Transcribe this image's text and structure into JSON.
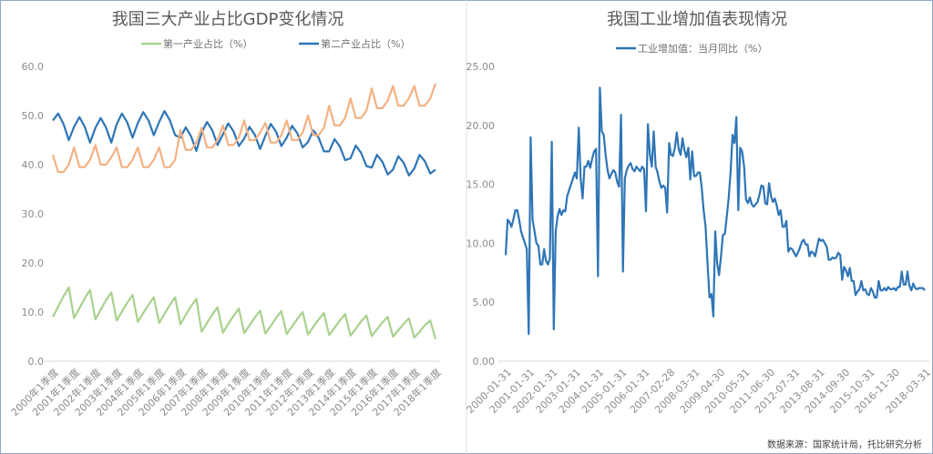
{
  "source_note": "数据来源：国家统计局，托比研究分析",
  "chart_data": [
    {
      "type": "line",
      "title": "我国三大产业占比GDP变化情况",
      "ylim": [
        0,
        60
      ],
      "yticks": [
        "0.0",
        "10.0",
        "20.0",
        "30.0",
        "40.0",
        "50.0",
        "60.0"
      ],
      "legend_position": "top",
      "grid": false,
      "x_tick_labels": [
        "2000年1季度",
        "2001年1季度",
        "2002年1季度",
        "2003年1季度",
        "2004年1季度",
        "2005年1季度",
        "2006年1季度",
        "2007年1季度",
        "2008年1季度",
        "2009年1季度",
        "2010年1季度",
        "2011年1季度",
        "2012年1季度",
        "2013年1季度",
        "2014年1季度",
        "2015年1季度",
        "2016年1季度",
        "2017年1季度",
        "2018年1季度"
      ],
      "x": "quarterly, 2000年1季度 to 2018年1季度",
      "series": [
        {
          "name": "第一产业占比（%）",
          "color": "#a9d18e",
          "values": [
            9,
            11.1,
            13.2,
            15,
            8.8,
            10.8,
            12.8,
            14.5,
            8.5,
            10.5,
            12.4,
            14,
            8.3,
            10.1,
            11.9,
            13.5,
            8,
            9.8,
            11.5,
            13,
            7.8,
            9.6,
            11.4,
            13,
            7.5,
            9.4,
            11.2,
            12.7,
            6,
            7.8,
            9.5,
            11,
            5.8,
            7.6,
            9.2,
            10.7,
            5.7,
            7.3,
            8.9,
            10.3,
            5.6,
            7.2,
            8.8,
            10.2,
            5.5,
            7.1,
            8.6,
            10,
            5.4,
            7,
            8.5,
            9.8,
            5.3,
            6.8,
            8.3,
            9.6,
            5.2,
            6.6,
            8.1,
            9.3,
            5.1,
            6.5,
            7.9,
            9,
            5,
            6.3,
            7.6,
            8.7,
            4.8,
            6,
            7.3,
            8.3,
            4.5
          ]
        },
        {
          "name": "第二产业占比（%）",
          "color": "#2e75b6",
          "values": [
            49,
            50.4,
            48.3,
            45,
            47.7,
            49.7,
            47.7,
            44.5,
            47.5,
            49.5,
            47.6,
            44.5,
            48.2,
            50.4,
            48.6,
            45.5,
            48.5,
            50.7,
            49,
            46,
            48.7,
            50.9,
            49.1,
            46,
            45.5,
            47.6,
            45.8,
            42.8,
            46.5,
            48.7,
            47,
            44,
            46.2,
            48.4,
            46.8,
            43.8,
            45.3,
            47.7,
            46.1,
            43.2,
            45.9,
            48.3,
            46.7,
            43.8,
            45.5,
            47.9,
            46.4,
            43.5,
            44.6,
            47,
            45.5,
            42.7,
            42.7,
            45.2,
            43.7,
            40.9,
            41.3,
            43.9,
            42.4,
            39.7,
            39.4,
            42,
            40.6,
            38,
            39,
            41.7,
            40.4,
            37.8,
            39.2,
            42,
            40.7,
            38.2,
            39
          ]
        },
        {
          "color": "#f4b183",
          "values": [
            42,
            38.5,
            38.5,
            40,
            43.5,
            39.5,
            39.5,
            41,
            44,
            40,
            40,
            41.5,
            43.5,
            39.5,
            39.5,
            41,
            43.5,
            39.5,
            39.5,
            41,
            43.5,
            39.5,
            39.5,
            41,
            47,
            43,
            43,
            44.5,
            47.5,
            43.5,
            43.5,
            45,
            48,
            44,
            44,
            45.5,
            49,
            45,
            45,
            46.5,
            48.5,
            44.5,
            44.5,
            46,
            49,
            45,
            45,
            46.5,
            50,
            46,
            46,
            47.5,
            52,
            48,
            48,
            49.5,
            53.5,
            49.5,
            49.5,
            51,
            55.5,
            51.5,
            51.5,
            53,
            56,
            52,
            52,
            53.5,
            56,
            52,
            52,
            53.5,
            56.5
          ]
        }
      ]
    },
    {
      "type": "line",
      "title": "我国工业增加值表现情况",
      "ylim": [
        0,
        25
      ],
      "yticks": [
        "0.00",
        "5.00",
        "10.00",
        "15.00",
        "20.00",
        "25.00"
      ],
      "legend_position": "top",
      "grid": false,
      "x": "monthly, 2000-01-31 to 2018-03-31",
      "x_tick_labels": [
        "2000-01-31",
        "2001-01-31",
        "2002-01-31",
        "2003-01-31",
        "2004-01-31",
        "2005-01-31",
        "2006-01-31",
        "2007-02-28",
        "2008-03-31",
        "2009-04-30",
        "2010-05-31",
        "2011-06-30",
        "2012-07-31",
        "2013-08-31",
        "2014-09-30",
        "2015-10-31",
        "2016-11-30",
        "2018-03-31"
      ],
      "x_tick_month_index": [
        0,
        12,
        24,
        36,
        48,
        60,
        72,
        85,
        98,
        111,
        124,
        137,
        150,
        163,
        176,
        189,
        202,
        218
      ],
      "series": [
        {
          "name": "工业增加值：当月同比（%）",
          "color": "#2e75b6",
          "values": [
            9,
            12,
            11.8,
            11.4,
            12,
            12.8,
            12.8,
            12,
            11,
            10.5,
            10,
            9.5,
            2.3,
            19,
            12,
            11,
            10,
            9.8,
            8.2,
            8.2,
            9.5,
            8.5,
            8.2,
            8.7,
            18.6,
            2.7,
            11,
            12.3,
            12.9,
            12.4,
            12.8,
            12.7,
            14,
            14.5,
            15,
            15.5,
            16,
            15.5,
            19.8,
            15.5,
            13.8,
            16.5,
            16.5,
            17,
            16.4,
            17.2,
            17.8,
            18,
            7.2,
            23.2,
            19.5,
            19.2,
            17.5,
            16.2,
            15.5,
            15.9,
            16.2,
            16,
            15.2,
            14.8,
            20.9,
            7.6,
            15.5,
            16.2,
            16.6,
            16.8,
            16.3,
            16.1,
            16.5,
            16.3,
            16.1,
            16.5,
            16.3,
            12.7,
            20.1,
            17.5,
            16.5,
            19.5,
            16.5,
            16,
            15.2,
            14.7,
            14.9,
            14.7,
            12.6,
            18.5,
            17.5,
            17.4,
            18.1,
            19.4,
            18,
            17.5,
            18.9,
            17.9,
            17.3,
            18.1,
            15.4,
            17.8,
            15.7,
            15.7,
            16,
            16,
            14.7,
            12.8,
            11.4,
            8.2,
            5.4,
            5.7,
            3.8,
            11,
            8.3,
            7.3,
            8.9,
            10.7,
            10.8,
            12.3,
            13.9,
            16.1,
            19.2,
            18.5,
            20.7,
            12.8,
            18.1,
            17.8,
            16.5,
            13.7,
            13.4,
            13.9,
            13.3,
            13.1,
            13.3,
            13.5,
            14.1,
            14.9,
            14.8,
            13.4,
            13.3,
            15.1,
            14,
            13.5,
            13.8,
            13.2,
            12.4,
            12.8,
            11.4,
            11.4,
            11.9,
            9.3,
            9.6,
            9.5,
            9.2,
            8.9,
            9.2,
            9.6,
            10.1,
            10.3,
            9.9,
            9.9,
            8.9,
            9.3,
            9.2,
            8.9,
            9.7,
            10.4,
            10.2,
            10.3,
            10,
            9.7,
            8.6,
            8.6,
            8.8,
            8.7,
            8.8,
            9.2,
            9,
            6.9,
            8,
            7.7,
            7.2,
            7.9,
            6.8,
            6.8,
            5.6,
            5.9,
            6.1,
            6.8,
            6,
            6.1,
            5.7,
            5.6,
            6.2,
            5.9,
            5.4,
            5.4,
            6.8,
            6,
            6,
            6.2,
            6,
            6.3,
            6.1,
            6.1,
            6.2,
            6,
            6.3,
            6.3,
            7.6,
            6.5,
            6.5,
            7.6,
            6.4,
            6,
            6.6,
            6.2,
            6.1,
            6.2,
            6.2,
            6.2,
            6
          ]
        }
      ]
    }
  ]
}
